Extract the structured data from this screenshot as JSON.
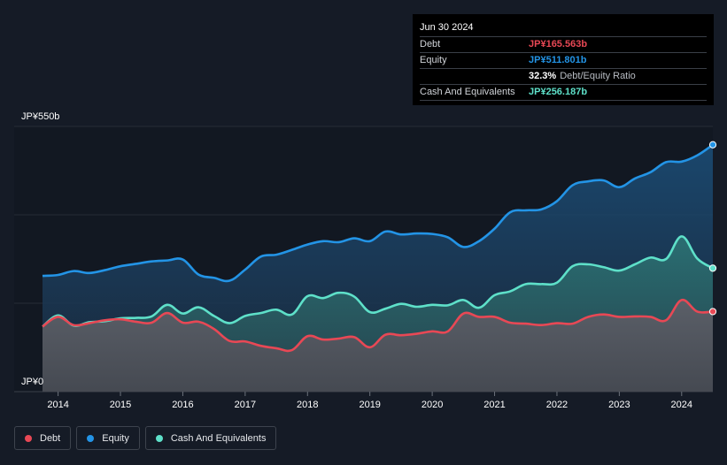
{
  "tooltip": {
    "date": "Jun 30 2024",
    "rows": [
      {
        "label": "Debt",
        "value": "JP¥165.563b",
        "color": "#e84855"
      },
      {
        "label": "Equity",
        "value": "JP¥511.801b",
        "color": "#2394e6"
      },
      {
        "label": "",
        "value": "32.3%",
        "suffix": "Debt/Equity Ratio",
        "color": "#ffffff"
      },
      {
        "label": "Cash And Equivalents",
        "value": "JP¥256.187b",
        "color": "#5ee0c9"
      }
    ]
  },
  "legend": {
    "items": [
      {
        "label": "Debt",
        "color": "#e84855"
      },
      {
        "label": "Equity",
        "color": "#2394e6"
      },
      {
        "label": "Cash And Equivalents",
        "color": "#5ee0c9"
      }
    ]
  },
  "chart_data": {
    "type": "area",
    "title": "",
    "xlabel": "",
    "ylabel": "",
    "ylim": [
      0,
      550
    ],
    "y_tick_labels": [
      "JP¥0",
      "JP¥550b"
    ],
    "x_tick_labels": [
      "2014",
      "2015",
      "2016",
      "2017",
      "2018",
      "2019",
      "2020",
      "2021",
      "2022",
      "2023",
      "2024"
    ],
    "x_tick_values": [
      2014,
      2015,
      2016,
      2017,
      2018,
      2019,
      2020,
      2021,
      2022,
      2023,
      2024
    ],
    "xlim": [
      2013.75,
      2024.5
    ],
    "x": [
      2013.75,
      2014.0,
      2014.25,
      2014.5,
      2014.75,
      2015.0,
      2015.25,
      2015.5,
      2015.75,
      2016.0,
      2016.25,
      2016.5,
      2016.75,
      2017.0,
      2017.25,
      2017.5,
      2017.75,
      2018.0,
      2018.25,
      2018.5,
      2018.75,
      2019.0,
      2019.25,
      2019.5,
      2019.75,
      2020.0,
      2020.25,
      2020.5,
      2020.75,
      2021.0,
      2021.25,
      2021.5,
      2021.75,
      2022.0,
      2022.25,
      2022.5,
      2022.75,
      2023.0,
      2023.25,
      2023.5,
      2023.75,
      2024.0,
      2024.25,
      2024.5
    ],
    "series": [
      {
        "name": "Equity",
        "color": "#2394e6",
        "values": [
          240,
          242,
          250,
          246,
          252,
          260,
          265,
          270,
          272,
          274,
          243,
          236,
          230,
          253,
          280,
          284,
          294,
          305,
          312,
          310,
          318,
          312,
          332,
          326,
          328,
          327,
          320,
          300,
          312,
          338,
          372,
          376,
          378,
          395,
          428,
          436,
          438,
          424,
          442,
          455,
          476,
          477,
          490,
          512
        ]
      },
      {
        "name": "Cash And Equivalents",
        "color": "#5ee0c9",
        "values": [
          135,
          158,
          137,
          144,
          146,
          152,
          153,
          156,
          180,
          162,
          175,
          157,
          142,
          157,
          163,
          170,
          160,
          198,
          194,
          205,
          197,
          165,
          172,
          182,
          176,
          180,
          179,
          190,
          174,
          200,
          208,
          223,
          223,
          226,
          260,
          264,
          258,
          251,
          264,
          278,
          275,
          322,
          276,
          256
        ]
      },
      {
        "name": "Debt",
        "color": "#e84855",
        "values": [
          135,
          155,
          138,
          142,
          148,
          150,
          145,
          143,
          163,
          143,
          145,
          130,
          105,
          104,
          95,
          90,
          86,
          115,
          108,
          110,
          113,
          92,
          118,
          117,
          120,
          125,
          125,
          162,
          155,
          155,
          143,
          141,
          138,
          142,
          141,
          155,
          160,
          155,
          156,
          155,
          148,
          190,
          166,
          166
        ]
      }
    ]
  }
}
